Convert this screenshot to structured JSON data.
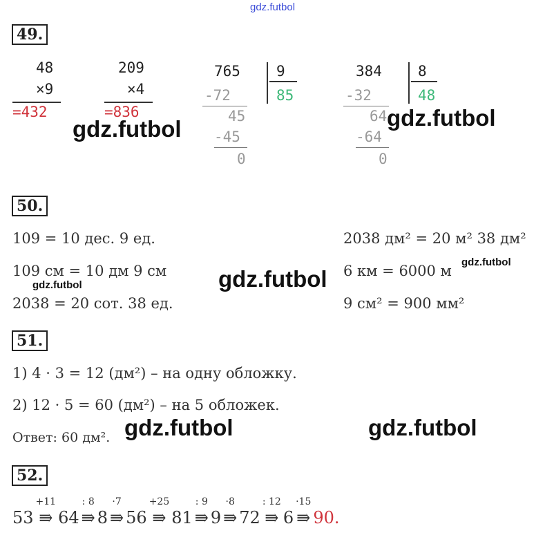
{
  "watermark": "gdz.futbol",
  "p49": {
    "num": "49.",
    "m1": {
      "a": "48",
      "b": "×9",
      "r": "=432"
    },
    "m2": {
      "a": "209",
      "b": "×4",
      "r": "=836"
    },
    "d1": {
      "dividend": "765",
      "divisor": "9",
      "quotient": "85",
      "s1": "-72",
      "r1": "45",
      "s2": "-45",
      "r2": "0"
    },
    "d2": {
      "dividend": "384",
      "divisor": "8",
      "quotient": "48",
      "s1": "-32",
      "r1": "64",
      "s2": "-64",
      "r2": "0"
    }
  },
  "p50": {
    "num": "50.",
    "left": [
      "109 = 10 дес. 9 ед.",
      "109 см = 10 дм 9 см",
      "2038 = 20 сот. 38 ед."
    ],
    "right": [
      "2038 дм² = 20 м² 38 дм²",
      "6 км = 6000 м",
      "9 см² = 900 мм²"
    ]
  },
  "p51": {
    "num": "51.",
    "lines": [
      "1) 4 · 3 = 12 (дм²) – на одну обложку.",
      "2) 12 · 5 = 60 (дм²) – на 5 обложек.",
      "Ответ: 60 дм²."
    ]
  },
  "p52": {
    "num": "52.",
    "chain": [
      "53",
      "64",
      "8",
      "56",
      "81",
      "9",
      "72",
      "6"
    ],
    "ops": [
      "+11",
      ": 8",
      "·7",
      "+25",
      ": 9",
      "·8",
      ": 12",
      "·15"
    ],
    "result": "90."
  },
  "colors": {
    "answer": "#d0343c",
    "quotient": "#3cb878",
    "watermark_top": "#3b4cd8"
  }
}
